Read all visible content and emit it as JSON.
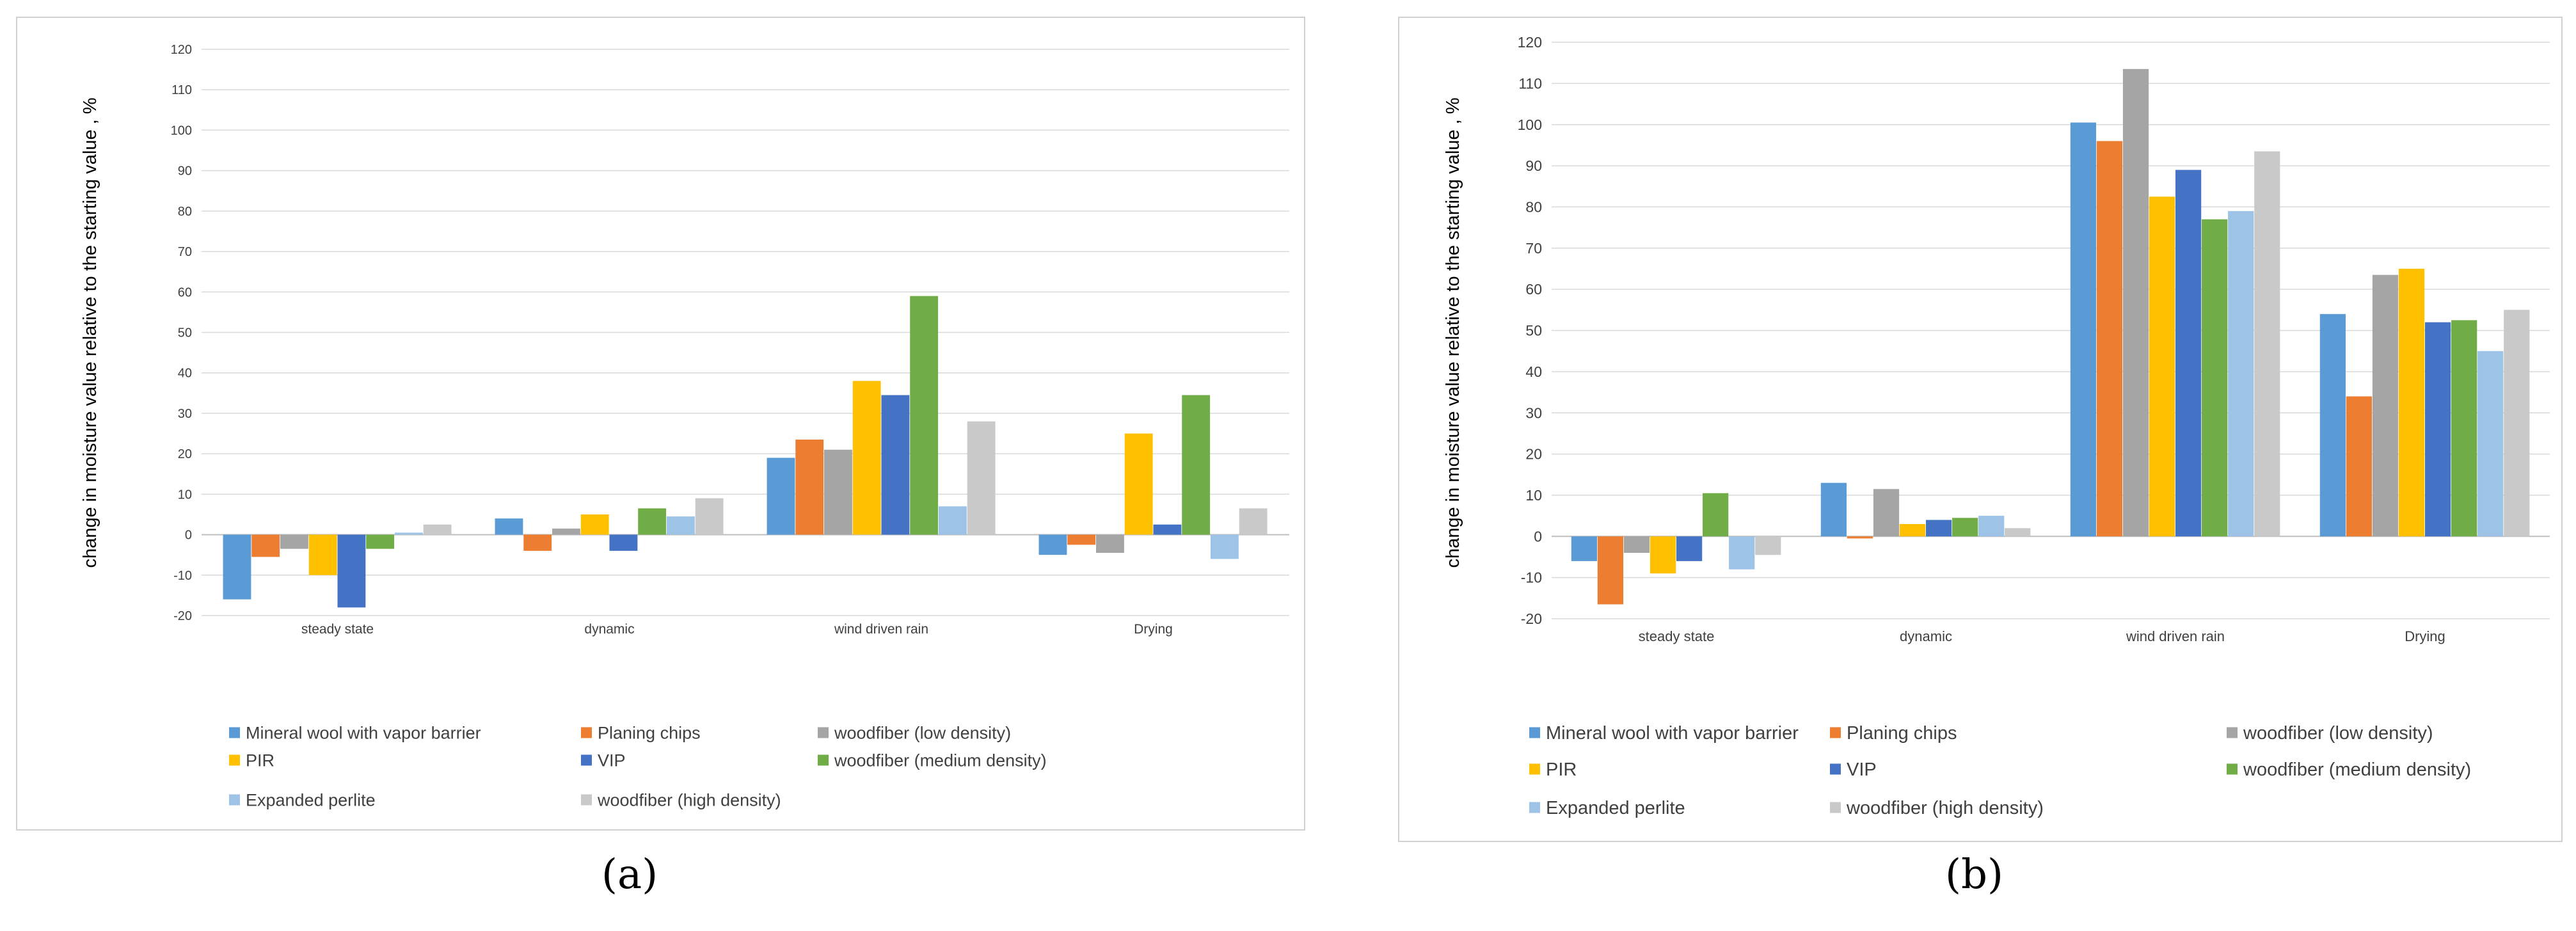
{
  "panel_labels": {
    "a": "(a)",
    "b": "(b)"
  },
  "colors": {
    "series": [
      "#5b9bd5",
      "#ed7d31",
      "#a5a5a5",
      "#ffc000",
      "#4472c4",
      "#70ad47",
      "#9dc3e6",
      "#c9c9c9"
    ],
    "grid": "#d9d9d9",
    "axis": "#bfbfbf",
    "text": "#404040"
  },
  "chart_data": [
    {
      "id": "a",
      "type": "bar",
      "title": "",
      "ylabel": "change in moisture value relative to the starting value , %",
      "xlabel": "",
      "ylim": [
        -20,
        120
      ],
      "yticks": [
        -20,
        -10,
        0,
        10,
        20,
        30,
        40,
        50,
        60,
        70,
        80,
        90,
        100,
        110,
        120
      ],
      "grid": true,
      "legend_position": "bottom",
      "categories": [
        "steady state",
        "dynamic",
        "wind driven rain",
        "Drying"
      ],
      "series": [
        {
          "name": "Mineral wool with vapor barrier",
          "values": [
            -16,
            4,
            19,
            -5
          ]
        },
        {
          "name": "Planing chips",
          "values": [
            -5.5,
            -4,
            23.5,
            -2.5
          ]
        },
        {
          "name": "woodfiber (low density)",
          "values": [
            -3.5,
            1.5,
            21,
            -4.5
          ]
        },
        {
          "name": "PIR",
          "values": [
            -10,
            5,
            38,
            25
          ]
        },
        {
          "name": "VIP",
          "values": [
            -18,
            -4,
            34.5,
            2.5
          ]
        },
        {
          "name": "woodfiber (medium density)",
          "values": [
            -3.5,
            6.5,
            59,
            34.5
          ]
        },
        {
          "name": "Expanded perlite",
          "values": [
            0.5,
            4.5,
            7,
            -6
          ]
        },
        {
          "name": "woodfiber (high density)",
          "values": [
            2.5,
            9,
            28,
            6.5
          ]
        }
      ]
    },
    {
      "id": "b",
      "type": "bar",
      "title": "",
      "ylabel": "change in moisture value relative to the starting value , %",
      "xlabel": "",
      "ylim": [
        -20,
        120
      ],
      "yticks": [
        -20,
        -10,
        0,
        10,
        20,
        30,
        40,
        50,
        60,
        70,
        80,
        90,
        100,
        110,
        120
      ],
      "grid": true,
      "legend_position": "bottom",
      "categories": [
        "steady state",
        "dynamic",
        "wind driven rain",
        "Drying"
      ],
      "series": [
        {
          "name": "Mineral wool with vapor barrier",
          "values": [
            -6,
            13,
            100.5,
            54
          ]
        },
        {
          "name": "Planing chips",
          "values": [
            -16.5,
            -0.5,
            96,
            34
          ]
        },
        {
          "name": "woodfiber (low density)",
          "values": [
            -4,
            11.5,
            113.5,
            63.5
          ]
        },
        {
          "name": "PIR",
          "values": [
            -9,
            3,
            82.5,
            65
          ]
        },
        {
          "name": "VIP",
          "values": [
            -6,
            4,
            89,
            52
          ]
        },
        {
          "name": "woodfiber (medium density)",
          "values": [
            10.5,
            4.5,
            77,
            52.5
          ]
        },
        {
          "name": "Expanded perlite",
          "values": [
            -8,
            5,
            79,
            45
          ]
        },
        {
          "name": "woodfiber (high density)",
          "values": [
            -4.5,
            2,
            93.5,
            55
          ]
        }
      ]
    }
  ]
}
